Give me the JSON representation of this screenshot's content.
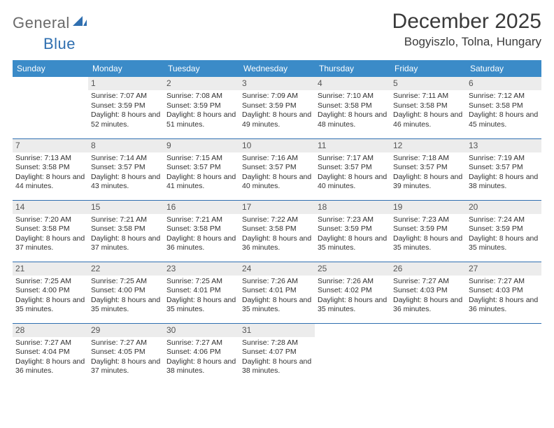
{
  "brand": {
    "general": "General",
    "blue": "Blue"
  },
  "title": "December 2025",
  "location": "Bogyiszlo, Tolna, Hungary",
  "colors": {
    "header_bg": "#3b8bc8",
    "header_text": "#ffffff",
    "rule": "#2f6fb0",
    "daynum_bg": "#ececec",
    "text": "#303030",
    "logo_gray": "#6a6a6a",
    "logo_blue": "#2f6fb0"
  },
  "weekdays": [
    "Sunday",
    "Monday",
    "Tuesday",
    "Wednesday",
    "Thursday",
    "Friday",
    "Saturday"
  ],
  "first_weekday_index": 1,
  "days": [
    {
      "n": 1,
      "sunrise": "7:07 AM",
      "sunset": "3:59 PM",
      "daylight": "8 hours and 52 minutes."
    },
    {
      "n": 2,
      "sunrise": "7:08 AM",
      "sunset": "3:59 PM",
      "daylight": "8 hours and 51 minutes."
    },
    {
      "n": 3,
      "sunrise": "7:09 AM",
      "sunset": "3:59 PM",
      "daylight": "8 hours and 49 minutes."
    },
    {
      "n": 4,
      "sunrise": "7:10 AM",
      "sunset": "3:58 PM",
      "daylight": "8 hours and 48 minutes."
    },
    {
      "n": 5,
      "sunrise": "7:11 AM",
      "sunset": "3:58 PM",
      "daylight": "8 hours and 46 minutes."
    },
    {
      "n": 6,
      "sunrise": "7:12 AM",
      "sunset": "3:58 PM",
      "daylight": "8 hours and 45 minutes."
    },
    {
      "n": 7,
      "sunrise": "7:13 AM",
      "sunset": "3:58 PM",
      "daylight": "8 hours and 44 minutes."
    },
    {
      "n": 8,
      "sunrise": "7:14 AM",
      "sunset": "3:57 PM",
      "daylight": "8 hours and 43 minutes."
    },
    {
      "n": 9,
      "sunrise": "7:15 AM",
      "sunset": "3:57 PM",
      "daylight": "8 hours and 41 minutes."
    },
    {
      "n": 10,
      "sunrise": "7:16 AM",
      "sunset": "3:57 PM",
      "daylight": "8 hours and 40 minutes."
    },
    {
      "n": 11,
      "sunrise": "7:17 AM",
      "sunset": "3:57 PM",
      "daylight": "8 hours and 40 minutes."
    },
    {
      "n": 12,
      "sunrise": "7:18 AM",
      "sunset": "3:57 PM",
      "daylight": "8 hours and 39 minutes."
    },
    {
      "n": 13,
      "sunrise": "7:19 AM",
      "sunset": "3:57 PM",
      "daylight": "8 hours and 38 minutes."
    },
    {
      "n": 14,
      "sunrise": "7:20 AM",
      "sunset": "3:58 PM",
      "daylight": "8 hours and 37 minutes."
    },
    {
      "n": 15,
      "sunrise": "7:21 AM",
      "sunset": "3:58 PM",
      "daylight": "8 hours and 37 minutes."
    },
    {
      "n": 16,
      "sunrise": "7:21 AM",
      "sunset": "3:58 PM",
      "daylight": "8 hours and 36 minutes."
    },
    {
      "n": 17,
      "sunrise": "7:22 AM",
      "sunset": "3:58 PM",
      "daylight": "8 hours and 36 minutes."
    },
    {
      "n": 18,
      "sunrise": "7:23 AM",
      "sunset": "3:59 PM",
      "daylight": "8 hours and 35 minutes."
    },
    {
      "n": 19,
      "sunrise": "7:23 AM",
      "sunset": "3:59 PM",
      "daylight": "8 hours and 35 minutes."
    },
    {
      "n": 20,
      "sunrise": "7:24 AM",
      "sunset": "3:59 PM",
      "daylight": "8 hours and 35 minutes."
    },
    {
      "n": 21,
      "sunrise": "7:25 AM",
      "sunset": "4:00 PM",
      "daylight": "8 hours and 35 minutes."
    },
    {
      "n": 22,
      "sunrise": "7:25 AM",
      "sunset": "4:00 PM",
      "daylight": "8 hours and 35 minutes."
    },
    {
      "n": 23,
      "sunrise": "7:25 AM",
      "sunset": "4:01 PM",
      "daylight": "8 hours and 35 minutes."
    },
    {
      "n": 24,
      "sunrise": "7:26 AM",
      "sunset": "4:01 PM",
      "daylight": "8 hours and 35 minutes."
    },
    {
      "n": 25,
      "sunrise": "7:26 AM",
      "sunset": "4:02 PM",
      "daylight": "8 hours and 35 minutes."
    },
    {
      "n": 26,
      "sunrise": "7:27 AM",
      "sunset": "4:03 PM",
      "daylight": "8 hours and 36 minutes."
    },
    {
      "n": 27,
      "sunrise": "7:27 AM",
      "sunset": "4:03 PM",
      "daylight": "8 hours and 36 minutes."
    },
    {
      "n": 28,
      "sunrise": "7:27 AM",
      "sunset": "4:04 PM",
      "daylight": "8 hours and 36 minutes."
    },
    {
      "n": 29,
      "sunrise": "7:27 AM",
      "sunset": "4:05 PM",
      "daylight": "8 hours and 37 minutes."
    },
    {
      "n": 30,
      "sunrise": "7:27 AM",
      "sunset": "4:06 PM",
      "daylight": "8 hours and 38 minutes."
    },
    {
      "n": 31,
      "sunrise": "7:28 AM",
      "sunset": "4:07 PM",
      "daylight": "8 hours and 38 minutes."
    }
  ],
  "labels": {
    "sunrise": "Sunrise:",
    "sunset": "Sunset:",
    "daylight": "Daylight:"
  }
}
